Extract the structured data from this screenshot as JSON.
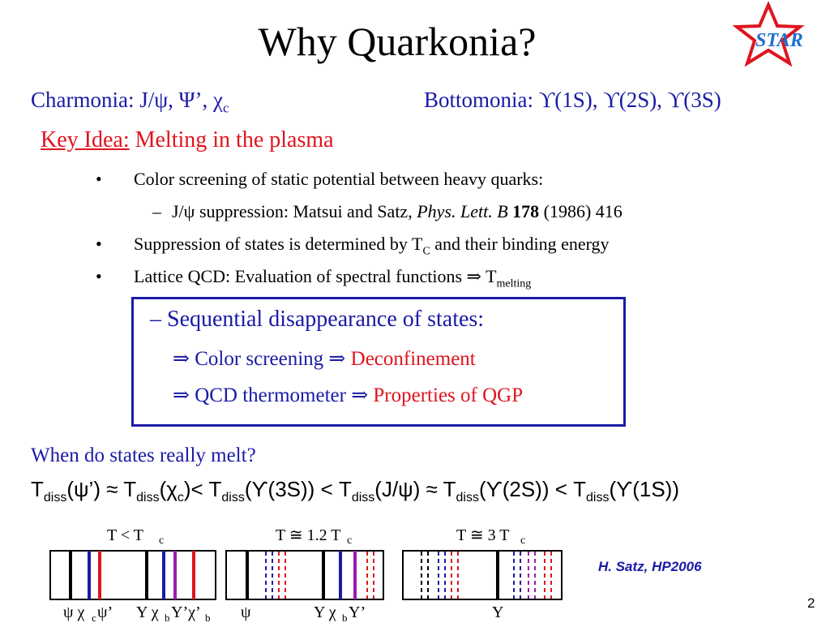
{
  "slide": {
    "title": "Why Quarkonia?",
    "logo": "STAR",
    "charmonia": "Charmonia: J/ψ, Ψ’, χ",
    "charmonia_sub": "c",
    "bottomonia": "Bottomonia: ϒ(1S), ϒ(2S), ϒ(3S)",
    "key_idea_label": "Key Idea:",
    "key_idea_text": " Melting in the plasma",
    "bullets": [
      {
        "marker": "•",
        "text": "Color screening of static potential between heavy quarks:"
      },
      {
        "marker": "–",
        "text_a": "J/ψ suppression: Matsui and Satz, ",
        "text_journal": "Phys. Lett. B",
        "text_vol": " 178",
        "text_b": " (1986) 416"
      },
      {
        "marker": "•",
        "text_a": "Suppression of states is determined by T",
        "text_sub": "C",
        "text_b": " and their binding energy"
      },
      {
        "marker": "•",
        "text_a": "Lattice QCD: Evaluation of spectral functions ⇒ T",
        "text_sub": "melting"
      }
    ],
    "box": {
      "line1": "– Sequential disappearance of states:",
      "line2_a": "⇒ Color screening ⇒ ",
      "line2_b": "Deconfinement",
      "line3_a": "⇒ QCD thermometer ⇒ ",
      "line3_b": "Properties of QGP"
    },
    "question": "When do states really melt?",
    "tdiss_parts": [
      {
        "t": "T"
      },
      {
        "s": "diss"
      },
      {
        "t": "(ψ’) ≈ T"
      },
      {
        "s": "diss"
      },
      {
        "t": "(χ"
      },
      {
        "s": "c"
      },
      {
        "t": ")< T"
      },
      {
        "s": "diss"
      },
      {
        "t": "(ϒ(3S)) < T"
      },
      {
        "s": "diss"
      },
      {
        "t": "(J/ψ) ≈ T"
      },
      {
        "s": "diss"
      },
      {
        "t": "(ϒ(2S)) < T"
      },
      {
        "s": "diss"
      },
      {
        "t": "(ϒ(1S))"
      }
    ],
    "credit": "H. Satz, HP2006",
    "page_number": "2",
    "panels": [
      {
        "temp_label": "T  <  T",
        "temp_sub": "c",
        "labels_a": "ψ χ",
        "labels_a_sub": "c",
        "labels_b": "ψ’",
        "labels_c": "Υ χ",
        "labels_c_sub": "b",
        "labels_d": "Υ’χ’",
        "labels_d_sub": "b"
      },
      {
        "temp_label": "T  ≅ 1.2 T",
        "temp_sub": "c",
        "labels_a": "ψ",
        "labels_c": "Υ χ",
        "labels_c_sub": "b",
        "labels_d": "Υ’"
      },
      {
        "temp_label": "T  ≅  3 T",
        "temp_sub": "c",
        "labels_c": "Υ"
      }
    ],
    "colors": {
      "blue": "#1a1aa6",
      "red": "#e0141e",
      "purple": "#9a1bb0"
    }
  }
}
